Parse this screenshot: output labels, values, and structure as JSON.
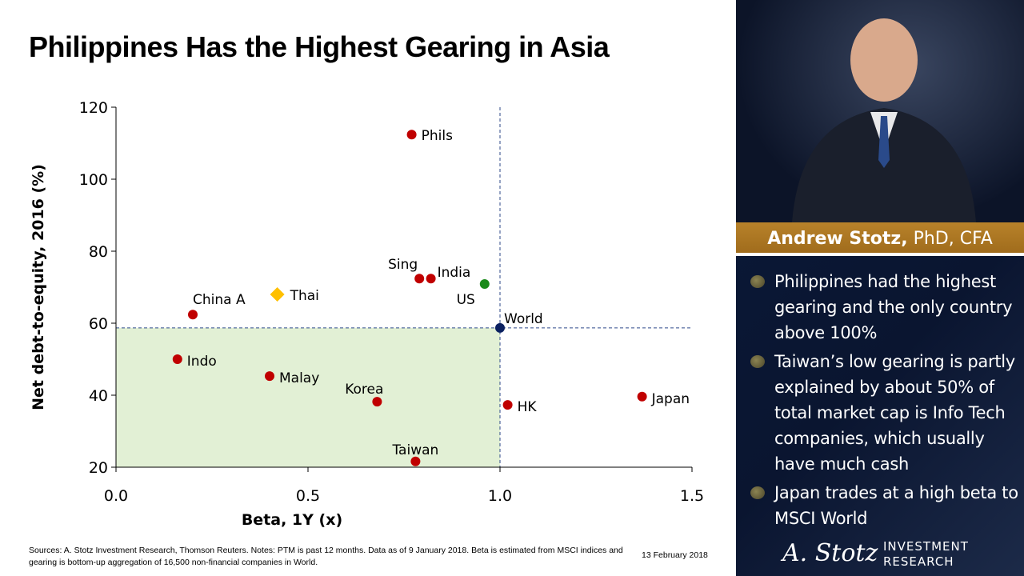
{
  "title": "Philippines Has the Highest Gearing in Asia",
  "chart_data": {
    "type": "scatter",
    "xlabel": "Beta, 1Y (x)",
    "ylabel": "Net debt-to-equity, 2016 (%)",
    "xlim": [
      0,
      1.5
    ],
    "ylim": [
      20,
      120
    ],
    "xticks": [
      "0.0",
      "0.5",
      "1.0",
      "1.5"
    ],
    "xtick_values": [
      0,
      0.5,
      1.0,
      1.5
    ],
    "yticks": [
      "20",
      "40",
      "60",
      "80",
      "100",
      "120"
    ],
    "ytick_values": [
      20,
      40,
      60,
      80,
      100,
      120
    ],
    "grid": false,
    "reference_lines": {
      "x": 1.0,
      "y": 58.7
    },
    "shaded_region": {
      "x": [
        0,
        1.0
      ],
      "y": [
        20,
        58.7
      ],
      "color": "#e2f0d5"
    },
    "points": [
      {
        "label": "Phils",
        "x": 0.77,
        "y": 112.4,
        "color": "#c00000",
        "marker": "circle"
      },
      {
        "label": "Sing",
        "x": 0.79,
        "y": 72.4,
        "color": "#c00000",
        "marker": "circle"
      },
      {
        "label": "India",
        "x": 0.82,
        "y": 72.4,
        "color": "#c00000",
        "marker": "circle"
      },
      {
        "label": "US",
        "x": 0.96,
        "y": 70.9,
        "color": "#1a8a1a",
        "marker": "circle"
      },
      {
        "label": "World",
        "x": 1.0,
        "y": 58.7,
        "color": "#0a2060",
        "marker": "circle"
      },
      {
        "label": "China A",
        "x": 0.2,
        "y": 62.4,
        "color": "#c00000",
        "marker": "circle"
      },
      {
        "label": "Thai",
        "x": 0.42,
        "y": 68.0,
        "color": "#ffc000",
        "marker": "diamond"
      },
      {
        "label": "Indo",
        "x": 0.16,
        "y": 50.0,
        "color": "#c00000",
        "marker": "circle"
      },
      {
        "label": "Malay",
        "x": 0.4,
        "y": 45.3,
        "color": "#c00000",
        "marker": "circle"
      },
      {
        "label": "Korea",
        "x": 0.68,
        "y": 38.2,
        "color": "#c00000",
        "marker": "circle"
      },
      {
        "label": "Taiwan",
        "x": 0.78,
        "y": 21.6,
        "color": "#c00000",
        "marker": "circle"
      },
      {
        "label": "HK",
        "x": 1.02,
        "y": 37.3,
        "color": "#c00000",
        "marker": "circle"
      },
      {
        "label": "Japan",
        "x": 1.37,
        "y": 39.6,
        "color": "#c00000",
        "marker": "circle"
      }
    ]
  },
  "footer": {
    "sources": "Sources: A. Stotz Investment Research, Thomson Reuters. Notes: PTM is past 12 months. Data as of 9 January 2018. Beta is estimated from MSCI indices and gearing is bottom-up aggregation of 16,500 non-financial companies in World.",
    "date": "13 February 2018"
  },
  "panel": {
    "name": "Andrew Stotz,",
    "credentials": " PhD, CFA",
    "bullets": [
      "Philippines had the highest gearing and the only country above 100%",
      "Taiwan’s low gearing is partly explained by about 50% of total market cap is Info Tech companies, which usually have much cash",
      "Japan trades at a high beta to MSCI World"
    ],
    "logo_signature": "A. Stotz",
    "logo_line1": "INVESTMENT",
    "logo_line2": "RESEARCH"
  }
}
